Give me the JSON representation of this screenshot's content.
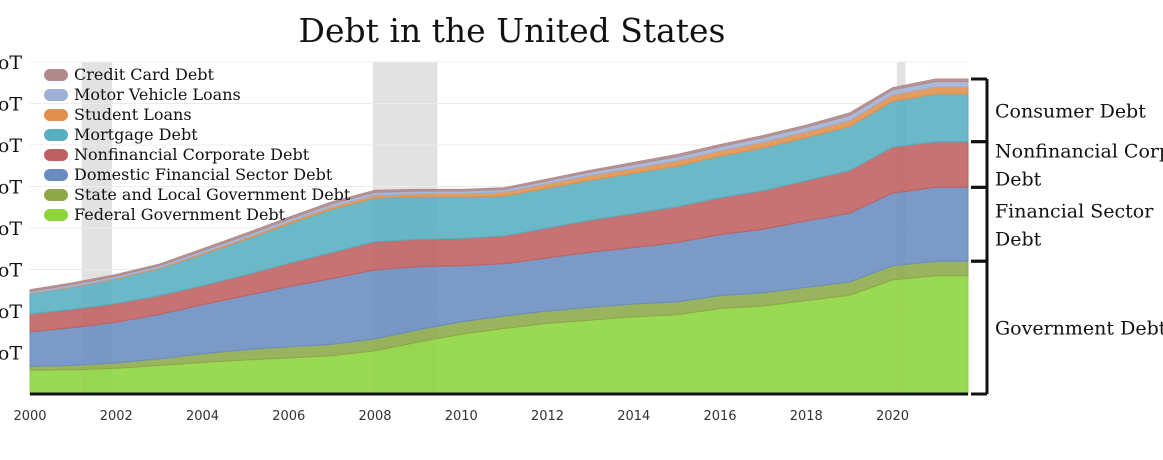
{
  "chart_data": {
    "type": "area",
    "stacked": true,
    "title": "Debt in the United States",
    "x_ticks": [
      "2000",
      "2002",
      "2004",
      "2006",
      "2008",
      "2010",
      "2012",
      "2014",
      "2016",
      "2018",
      "2020"
    ],
    "y_ticks": [
      "oT",
      "oT",
      "oT",
      "oT",
      "oT",
      "oT",
      "oT",
      "oT"
    ],
    "x_range": [
      2000,
      2021.75
    ],
    "y_range": [
      0,
      80
    ],
    "recession_bands": [
      [
        2001.2,
        2001.9
      ],
      [
        2007.95,
        2009.45
      ],
      [
        2020.1,
        2020.3
      ]
    ],
    "legend_position": "top-left",
    "years": [
      2000,
      2001,
      2002,
      2003,
      2004,
      2005,
      2006,
      2007,
      2008,
      2009,
      2010,
      2011,
      2012,
      2013,
      2014,
      2015,
      2016,
      2017,
      2018,
      2019,
      2020,
      2021
    ],
    "series": [
      {
        "name": "Federal Government Debt",
        "color": "#8cd43c",
        "values": [
          5.7,
          5.8,
          6.2,
          6.9,
          7.6,
          8.2,
          8.7,
          9.2,
          10.4,
          12.5,
          14.4,
          15.8,
          17.0,
          17.8,
          18.6,
          19.1,
          20.6,
          21.2,
          22.5,
          23.8,
          27.5,
          28.5
        ]
      },
      {
        "name": "State and Local Government Debt",
        "color": "#8ca848",
        "values": [
          1.0,
          1.1,
          1.3,
          1.6,
          2.1,
          2.5,
          2.7,
          2.8,
          2.9,
          3.0,
          3.0,
          3.0,
          3.0,
          3.1,
          3.1,
          3.1,
          3.1,
          3.2,
          3.2,
          3.2,
          3.4,
          3.5
        ]
      },
      {
        "name": "Domestic Financial Sector Debt",
        "color": "#6a8cc0",
        "values": [
          8.3,
          9.1,
          9.8,
          10.7,
          11.8,
          13.0,
          14.5,
          15.8,
          16.6,
          15.2,
          13.5,
          12.6,
          12.8,
          13.3,
          13.6,
          14.3,
          14.7,
          15.3,
          16.0,
          16.6,
          17.5,
          17.8
        ]
      },
      {
        "name": "Nonfinancial Corporate Debt",
        "color": "#c06060",
        "values": [
          4.3,
          4.4,
          4.5,
          4.5,
          4.6,
          5.0,
          5.6,
          6.3,
          6.8,
          6.6,
          6.6,
          6.7,
          7.2,
          7.7,
          8.2,
          8.6,
          8.9,
          9.3,
          9.7,
          10.2,
          11.1,
          11.0
        ]
      },
      {
        "name": "Mortgage Debt",
        "color": "#56aec0",
        "values": [
          4.9,
          5.3,
          5.9,
          6.5,
          7.5,
          8.5,
          9.5,
          10.4,
          10.5,
          10.2,
          9.9,
          9.6,
          9.6,
          9.6,
          9.7,
          9.8,
          10.0,
          10.3,
          10.4,
          10.6,
          11.0,
          11.5
        ]
      },
      {
        "name": "Student Loans",
        "color": "#e0904a",
        "values": [
          0.1,
          0.2,
          0.2,
          0.2,
          0.3,
          0.4,
          0.5,
          0.6,
          0.7,
          0.8,
          0.9,
          1.0,
          1.1,
          1.2,
          1.2,
          1.3,
          1.3,
          1.4,
          1.4,
          1.5,
          1.6,
          1.7
        ]
      },
      {
        "name": "Motor Vehicle Loans",
        "color": "#9fb0d6",
        "values": [
          0.4,
          0.5,
          0.5,
          0.5,
          0.6,
          0.6,
          0.6,
          0.7,
          0.7,
          0.6,
          0.6,
          0.6,
          0.7,
          0.8,
          0.9,
          1.0,
          1.0,
          1.1,
          1.1,
          1.2,
          1.2,
          1.3
        ]
      },
      {
        "name": "Credit Card Debt",
        "color": "#b08a8a",
        "values": [
          0.4,
          0.4,
          0.4,
          0.4,
          0.5,
          0.5,
          0.5,
          0.5,
          0.5,
          0.4,
          0.4,
          0.4,
          0.4,
          0.4,
          0.5,
          0.5,
          0.5,
          0.5,
          0.5,
          0.6,
          0.5,
          0.6
        ]
      }
    ],
    "legend_order": [
      "Credit Card Debt",
      "Motor Vehicle Loans",
      "Student Loans",
      "Mortgage Debt",
      "Nonfinancial Corporate Debt",
      "Domestic Financial Sector Debt",
      "State and Local Government Debt",
      "Federal Government Debt"
    ],
    "brackets": [
      {
        "label_lines": [
          "Consumer Debt"
        ],
        "series_from": 4,
        "series_to": 7
      },
      {
        "label_lines": [
          "Nonfinancial Corp",
          "Debt"
        ],
        "series_from": 3,
        "series_to": 3
      },
      {
        "label_lines": [
          "Financial Sector",
          "Debt"
        ],
        "series_from": 2,
        "series_to": 2
      },
      {
        "label_lines": [
          "Government Debt"
        ],
        "series_from": 0,
        "series_to": 1
      }
    ]
  }
}
